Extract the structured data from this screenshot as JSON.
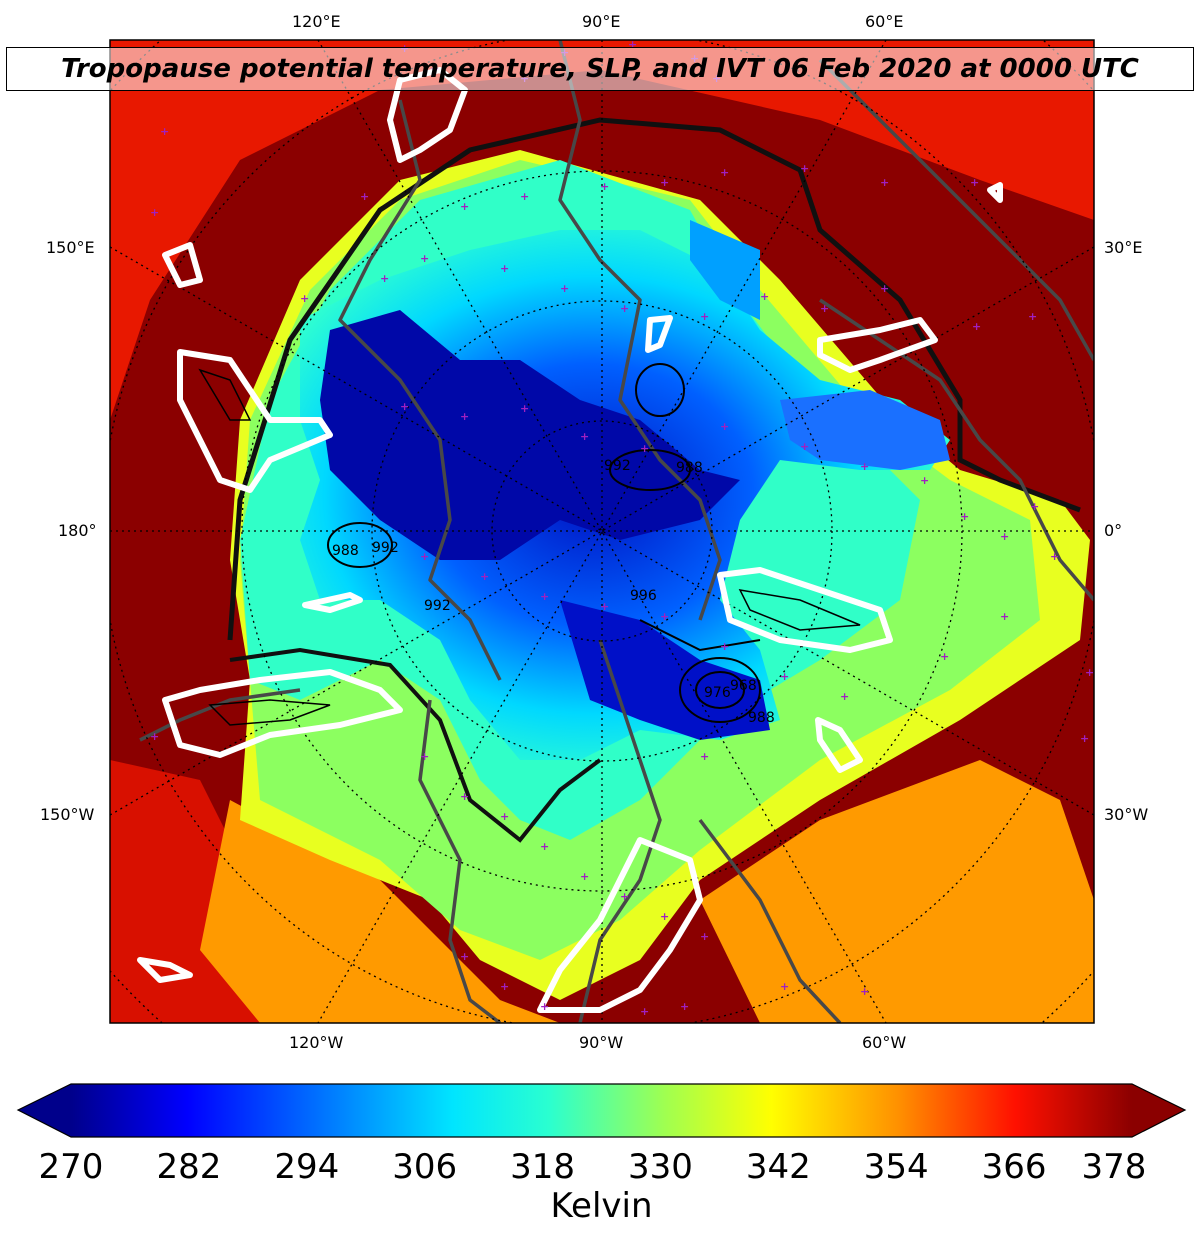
{
  "title": "Tropopause potential temperature, SLP, and IVT 06 Feb 2020 at 0000 UTC",
  "map": {
    "top_labels": [
      "120°E",
      "90°E",
      "60°E"
    ],
    "bottom_labels": [
      "120°W",
      "90°W",
      "60°W"
    ],
    "left_labels": [
      "150°E",
      "180°",
      "150°W"
    ],
    "right_labels": [
      "30°E",
      "0°",
      "30°W"
    ],
    "slp_contour_labels": [
      "988",
      "992",
      "992",
      "988",
      "992",
      "976",
      "968",
      "988",
      "996"
    ],
    "colors": {
      "outer_background": "#8b0000",
      "coastline": "#484848",
      "ivt_contour": "#ffffff",
      "surface_obs_marker": "#a020c0"
    }
  },
  "colorbar": {
    "label": "Kelvin",
    "min": 270,
    "max": 378,
    "extend": "both",
    "colormap": "jet",
    "ticks": [
      "270",
      "282",
      "294",
      "306",
      "318",
      "330",
      "342",
      "354",
      "366",
      "378"
    ]
  }
}
